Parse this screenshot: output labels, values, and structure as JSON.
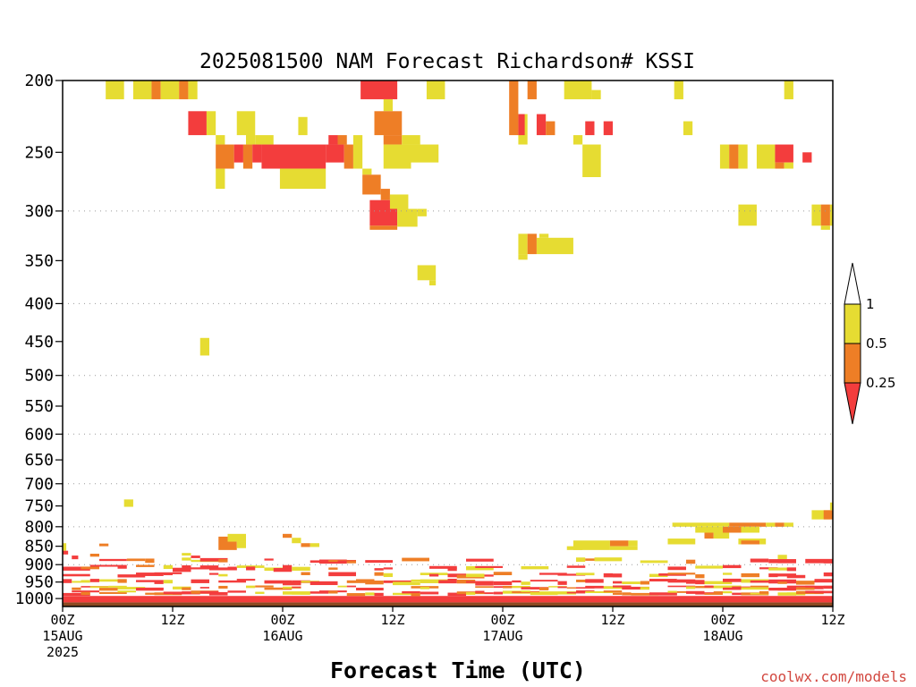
{
  "chart_data": {
    "type": "heatmap",
    "title": "2025081500 NAM Forecast Richardson# KSSI",
    "xlabel": "Forecast Time (UTC)",
    "ylabel": "",
    "credit": "coolwx.com/models",
    "x_unit": "forecast hour",
    "xlim": [
      0,
      84
    ],
    "y_unit": "hPa",
    "y_scale": "log (pressure)",
    "ylim": [
      1025,
      200
    ],
    "grid": "dotted horizontal",
    "y_ticks": [
      200,
      250,
      300,
      350,
      400,
      450,
      500,
      550,
      600,
      650,
      700,
      750,
      800,
      850,
      900,
      950,
      1000
    ],
    "y_grid": [
      300,
      400,
      500,
      600,
      700,
      800,
      900
    ],
    "x_ticks": [
      {
        "hour": 0,
        "lines": [
          "00Z",
          "15AUG",
          "2025"
        ]
      },
      {
        "hour": 12,
        "lines": [
          "12Z"
        ]
      },
      {
        "hour": 24,
        "lines": [
          "00Z",
          "16AUG"
        ]
      },
      {
        "hour": 36,
        "lines": [
          "12Z"
        ]
      },
      {
        "hour": 48,
        "lines": [
          "00Z",
          "17AUG"
        ]
      },
      {
        "hour": 60,
        "lines": [
          "12Z"
        ]
      },
      {
        "hour": 72,
        "lines": [
          "00Z",
          "18AUG"
        ]
      },
      {
        "hour": 84,
        "lines": [
          "12Z"
        ]
      }
    ],
    "legend": {
      "placement": "right",
      "items": [
        {
          "range": "< 0.25",
          "color": "#f33d3d"
        },
        {
          "range": "0.25 - 0.5",
          "color": "#ee7e26"
        },
        {
          "range": "0.5 - 1",
          "color": "#e6dc32"
        }
      ],
      "labels": [
        "1",
        "0.5",
        "0.25"
      ]
    },
    "colors": {
      "red": "#f33d3d",
      "orange": "#ee7e26",
      "yellow": "#e6dc32",
      "ground": "#8b4a22"
    },
    "surface_pressure_hpa": 1012,
    "cells": [
      {
        "t0": 4.7,
        "t1": 6.7,
        "p0": 200,
        "p1": 212,
        "c": "yellow"
      },
      {
        "t0": 7.7,
        "t1": 9.7,
        "p0": 200,
        "p1": 212,
        "c": "yellow"
      },
      {
        "t0": 9.7,
        "t1": 10.7,
        "p0": 200,
        "p1": 212,
        "c": "orange"
      },
      {
        "t0": 10.7,
        "t1": 12.7,
        "p0": 200,
        "p1": 212,
        "c": "yellow"
      },
      {
        "t0": 12.7,
        "t1": 13.7,
        "p0": 200,
        "p1": 212,
        "c": "orange"
      },
      {
        "t0": 13.7,
        "t1": 14.7,
        "p0": 200,
        "p1": 212,
        "c": "yellow"
      },
      {
        "t0": 13.7,
        "t1": 15.7,
        "p0": 220,
        "p1": 237,
        "c": "red"
      },
      {
        "t0": 15.7,
        "t1": 16.7,
        "p0": 220,
        "p1": 237,
        "c": "yellow"
      },
      {
        "t0": 16.7,
        "t1": 17.7,
        "p0": 237,
        "p1": 244,
        "c": "yellow"
      },
      {
        "t0": 19.0,
        "t1": 20.0,
        "p0": 220,
        "p1": 237,
        "c": "yellow"
      },
      {
        "t0": 20.0,
        "t1": 21.0,
        "p0": 220,
        "p1": 244,
        "c": "yellow"
      },
      {
        "t0": 21.0,
        "t1": 23.0,
        "p0": 237,
        "p1": 244,
        "c": "yellow"
      },
      {
        "t0": 16.7,
        "t1": 18.7,
        "p0": 244,
        "p1": 263,
        "c": "orange"
      },
      {
        "t0": 18.7,
        "t1": 19.7,
        "p0": 244,
        "p1": 258,
        "c": "red"
      },
      {
        "t0": 19.7,
        "t1": 20.7,
        "p0": 244,
        "p1": 263,
        "c": "orange"
      },
      {
        "t0": 20.7,
        "t1": 21.7,
        "p0": 244,
        "p1": 258,
        "c": "red"
      },
      {
        "t0": 21.7,
        "t1": 28.7,
        "p0": 244,
        "p1": 263,
        "c": "red"
      },
      {
        "t0": 28.7,
        "t1": 30.7,
        "p0": 244,
        "p1": 258,
        "c": "red"
      },
      {
        "t0": 30.7,
        "t1": 31.7,
        "p0": 244,
        "p1": 263,
        "c": "orange"
      },
      {
        "t0": 30.0,
        "t1": 31.0,
        "p0": 237,
        "p1": 244,
        "c": "orange"
      },
      {
        "t0": 29.0,
        "t1": 30.0,
        "p0": 237,
        "p1": 244,
        "c": "red"
      },
      {
        "t0": 31.7,
        "t1": 32.7,
        "p0": 237,
        "p1": 263,
        "c": "yellow"
      },
      {
        "t0": 16.7,
        "t1": 17.7,
        "p0": 263,
        "p1": 280,
        "c": "yellow"
      },
      {
        "t0": 23.7,
        "t1": 28.7,
        "p0": 263,
        "p1": 280,
        "c": "yellow"
      },
      {
        "t0": 25.7,
        "t1": 26.7,
        "p0": 224,
        "p1": 237,
        "c": "yellow"
      },
      {
        "t0": 32.5,
        "t1": 36.5,
        "p0": 200,
        "p1": 212,
        "c": "red"
      },
      {
        "t0": 35.0,
        "t1": 36.0,
        "p0": 212,
        "p1": 220,
        "c": "yellow"
      },
      {
        "t0": 34.0,
        "t1": 37.0,
        "p0": 220,
        "p1": 237,
        "c": "orange"
      },
      {
        "t0": 35.0,
        "t1": 37.0,
        "p0": 237,
        "p1": 244,
        "c": "orange"
      },
      {
        "t0": 35.0,
        "t1": 38.0,
        "p0": 244,
        "p1": 263,
        "c": "yellow"
      },
      {
        "t0": 38.0,
        "t1": 41.0,
        "p0": 244,
        "p1": 258,
        "c": "yellow"
      },
      {
        "t0": 37.0,
        "t1": 39.0,
        "p0": 237,
        "p1": 244,
        "c": "yellow"
      },
      {
        "t0": 39.7,
        "t1": 41.7,
        "p0": 200,
        "p1": 212,
        "c": "yellow"
      },
      {
        "t0": 32.7,
        "t1": 33.7,
        "p0": 263,
        "p1": 268,
        "c": "yellow"
      },
      {
        "t0": 32.7,
        "t1": 34.7,
        "p0": 268,
        "p1": 285,
        "c": "orange"
      },
      {
        "t0": 34.7,
        "t1": 35.7,
        "p0": 280,
        "p1": 290,
        "c": "orange"
      },
      {
        "t0": 33.5,
        "t1": 36.5,
        "p0": 290,
        "p1": 314,
        "c": "red"
      },
      {
        "t0": 33.5,
        "t1": 36.5,
        "p0": 314,
        "p1": 318,
        "c": "orange"
      },
      {
        "t0": 35.7,
        "t1": 37.7,
        "p0": 285,
        "p1": 298,
        "c": "yellow"
      },
      {
        "t0": 36.5,
        "t1": 38.7,
        "p0": 298,
        "p1": 315,
        "c": "yellow"
      },
      {
        "t0": 38.7,
        "t1": 39.7,
        "p0": 298,
        "p1": 305,
        "c": "yellow"
      },
      {
        "t0": 38.7,
        "t1": 40.7,
        "p0": 355,
        "p1": 372,
        "c": "yellow"
      },
      {
        "t0": 40.0,
        "t1": 40.7,
        "p0": 372,
        "p1": 378,
        "c": "yellow"
      },
      {
        "t0": 48.7,
        "t1": 49.7,
        "p0": 200,
        "p1": 237,
        "c": "orange"
      },
      {
        "t0": 49.7,
        "t1": 50.7,
        "p0": 222,
        "p1": 244,
        "c": "yellow"
      },
      {
        "t0": 49.7,
        "t1": 50.4,
        "p0": 222,
        "p1": 237,
        "c": "red"
      },
      {
        "t0": 50.7,
        "t1": 51.7,
        "p0": 200,
        "p1": 212,
        "c": "orange"
      },
      {
        "t0": 51.7,
        "t1": 52.7,
        "p0": 222,
        "p1": 237,
        "c": "red"
      },
      {
        "t0": 52.7,
        "t1": 53.7,
        "p0": 227,
        "p1": 237,
        "c": "orange"
      },
      {
        "t0": 54.7,
        "t1": 57.7,
        "p0": 200,
        "p1": 212,
        "c": "yellow"
      },
      {
        "t0": 57.7,
        "t1": 58.7,
        "p0": 206,
        "p1": 212,
        "c": "yellow"
      },
      {
        "t0": 57.0,
        "t1": 58.0,
        "p0": 227,
        "p1": 237,
        "c": "red"
      },
      {
        "t0": 59.0,
        "t1": 60.0,
        "p0": 227,
        "p1": 237,
        "c": "red"
      },
      {
        "t0": 56.7,
        "t1": 58.7,
        "p0": 244,
        "p1": 270,
        "c": "yellow"
      },
      {
        "t0": 55.7,
        "t1": 56.7,
        "p0": 237,
        "p1": 244,
        "c": "yellow"
      },
      {
        "t0": 49.7,
        "t1": 50.7,
        "p0": 322,
        "p1": 343,
        "c": "yellow"
      },
      {
        "t0": 50.7,
        "t1": 51.7,
        "p0": 322,
        "p1": 343,
        "c": "orange"
      },
      {
        "t0": 51.7,
        "t1": 55.7,
        "p0": 326,
        "p1": 343,
        "c": "yellow"
      },
      {
        "t0": 52.0,
        "t1": 53.0,
        "p0": 322,
        "p1": 326,
        "c": "yellow"
      },
      {
        "t0": 49.7,
        "t1": 50.7,
        "p0": 343,
        "p1": 349,
        "c": "yellow"
      },
      {
        "t0": 66.7,
        "t1": 67.7,
        "p0": 200,
        "p1": 212,
        "c": "yellow"
      },
      {
        "t0": 67.7,
        "t1": 68.7,
        "p0": 227,
        "p1": 237,
        "c": "yellow"
      },
      {
        "t0": 71.7,
        "t1": 72.7,
        "p0": 244,
        "p1": 263,
        "c": "yellow"
      },
      {
        "t0": 72.7,
        "t1": 73.7,
        "p0": 244,
        "p1": 263,
        "c": "orange"
      },
      {
        "t0": 73.7,
        "t1": 74.7,
        "p0": 244,
        "p1": 263,
        "c": "yellow"
      },
      {
        "t0": 75.7,
        "t1": 77.7,
        "p0": 244,
        "p1": 263,
        "c": "yellow"
      },
      {
        "t0": 77.7,
        "t1": 79.7,
        "p0": 244,
        "p1": 258,
        "c": "red"
      },
      {
        "t0": 77.7,
        "t1": 78.7,
        "p0": 258,
        "p1": 263,
        "c": "orange"
      },
      {
        "t0": 78.7,
        "t1": 79.7,
        "p0": 258,
        "p1": 263,
        "c": "yellow"
      },
      {
        "t0": 80.7,
        "t1": 81.7,
        "p0": 250,
        "p1": 258,
        "c": "red"
      },
      {
        "t0": 78.7,
        "t1": 79.7,
        "p0": 200,
        "p1": 212,
        "c": "yellow"
      },
      {
        "t0": 73.7,
        "t1": 75.7,
        "p0": 294,
        "p1": 314,
        "c": "yellow"
      },
      {
        "t0": 81.7,
        "t1": 82.7,
        "p0": 294,
        "p1": 314,
        "c": "yellow"
      },
      {
        "t0": 82.7,
        "t1": 83.7,
        "p0": 294,
        "p1": 314,
        "c": "orange"
      },
      {
        "t0": 83.7,
        "t1": 84.0,
        "p0": 294,
        "p1": 314,
        "c": "yellow"
      },
      {
        "t0": 82.7,
        "t1": 83.7,
        "p0": 314,
        "p1": 318,
        "c": "yellow"
      },
      {
        "t0": 15.0,
        "t1": 16.0,
        "p0": 445,
        "p1": 470,
        "c": "yellow"
      },
      {
        "t0": 6.7,
        "t1": 7.7,
        "p0": 735,
        "p1": 752,
        "c": "yellow"
      },
      {
        "t0": 66.5,
        "t1": 72.7,
        "p0": 790,
        "p1": 800,
        "c": "yellow"
      },
      {
        "t0": 72.7,
        "t1": 76.7,
        "p0": 790,
        "p1": 800,
        "c": "orange"
      },
      {
        "t0": 76.7,
        "t1": 77.7,
        "p0": 790,
        "p1": 800,
        "c": "yellow"
      },
      {
        "t0": 77.7,
        "t1": 78.7,
        "p0": 790,
        "p1": 800,
        "c": "orange"
      },
      {
        "t0": 78.7,
        "t1": 79.7,
        "p0": 790,
        "p1": 800,
        "c": "yellow"
      },
      {
        "t0": 69.0,
        "t1": 72.0,
        "p0": 800,
        "p1": 815,
        "c": "yellow"
      },
      {
        "t0": 72.0,
        "t1": 74.0,
        "p0": 800,
        "p1": 815,
        "c": "orange"
      },
      {
        "t0": 74.0,
        "t1": 76.0,
        "p0": 800,
        "p1": 815,
        "c": "yellow"
      },
      {
        "t0": 70.0,
        "t1": 71.0,
        "p0": 815,
        "p1": 830,
        "c": "orange"
      },
      {
        "t0": 71.0,
        "t1": 72.7,
        "p0": 815,
        "p1": 830,
        "c": "yellow"
      },
      {
        "t0": 73.7,
        "t1": 76.7,
        "p0": 830,
        "p1": 845,
        "c": "yellow"
      },
      {
        "t0": 66.0,
        "t1": 69.0,
        "p0": 830,
        "p1": 845,
        "c": "yellow"
      },
      {
        "t0": 74.0,
        "t1": 76.0,
        "p0": 835,
        "p1": 845,
        "c": "orange"
      },
      {
        "t0": 81.7,
        "t1": 83.7,
        "p0": 760,
        "p1": 782,
        "c": "yellow"
      },
      {
        "t0": 83.0,
        "t1": 84.0,
        "p0": 760,
        "p1": 782,
        "c": "orange"
      },
      {
        "t0": 83.7,
        "t1": 84.0,
        "p0": 742,
        "p1": 760,
        "c": "yellow"
      },
      {
        "t0": 55.7,
        "t1": 59.7,
        "p0": 835,
        "p1": 860,
        "c": "yellow"
      },
      {
        "t0": 59.7,
        "t1": 61.7,
        "p0": 835,
        "p1": 850,
        "c": "orange"
      },
      {
        "t0": 61.7,
        "t1": 62.7,
        "p0": 835,
        "p1": 850,
        "c": "yellow"
      },
      {
        "t0": 55.0,
        "t1": 56.7,
        "p0": 850,
        "p1": 860,
        "c": "yellow"
      },
      {
        "t0": 59.7,
        "t1": 62.7,
        "p0": 850,
        "p1": 860,
        "c": "yellow"
      },
      {
        "t0": 78.0,
        "t1": 79.0,
        "p0": 873,
        "p1": 885,
        "c": "yellow"
      },
      {
        "t0": 17.0,
        "t1": 18.0,
        "p0": 825,
        "p1": 860,
        "c": "orange"
      },
      {
        "t0": 18.0,
        "t1": 20.0,
        "p0": 818,
        "p1": 838,
        "c": "yellow"
      },
      {
        "t0": 18.0,
        "t1": 19.0,
        "p0": 838,
        "p1": 860,
        "c": "orange"
      },
      {
        "t0": 19.0,
        "t1": 20.0,
        "p0": 838,
        "p1": 855,
        "c": "yellow"
      },
      {
        "t0": 24.0,
        "t1": 25.0,
        "p0": 818,
        "p1": 828,
        "c": "orange"
      },
      {
        "t0": 25.0,
        "t1": 26.0,
        "p0": 828,
        "p1": 842,
        "c": "yellow"
      },
      {
        "t0": 26.0,
        "t1": 27.0,
        "p0": 842,
        "p1": 852,
        "c": "orange"
      },
      {
        "t0": 27.0,
        "t1": 28.0,
        "p0": 842,
        "p1": 852,
        "c": "yellow"
      },
      {
        "t0": 0.0,
        "t1": 0.4,
        "p0": 842,
        "p1": 862,
        "c": "yellow"
      },
      {
        "t0": 0.0,
        "t1": 0.6,
        "p0": 862,
        "p1": 872,
        "c": "red"
      },
      {
        "t0": 1.0,
        "t1": 1.7,
        "p0": 875,
        "p1": 885,
        "c": "red"
      },
      {
        "t0": 4.0,
        "t1": 5.0,
        "p0": 843,
        "p1": 850,
        "c": "orange"
      },
      {
        "t0": 3.0,
        "t1": 4.0,
        "p0": 870,
        "p1": 878,
        "c": "orange"
      },
      {
        "t0": 13.0,
        "t1": 14.0,
        "p0": 868,
        "p1": 875,
        "c": "yellow"
      },
      {
        "t0": 14.0,
        "t1": 15.0,
        "p0": 875,
        "p1": 882,
        "c": "red"
      },
      {
        "t0": 0.0,
        "t1": 84.0,
        "p0": 992,
        "p1": 1012,
        "c": "red"
      }
    ],
    "low_band": {
      "t_step": 1,
      "layers": [
        {
          "p0": 880,
          "p1": 900,
          "density": 0.22
        },
        {
          "p0": 900,
          "p1": 920,
          "density": 0.35
        },
        {
          "p0": 920,
          "p1": 940,
          "density": 0.45
        },
        {
          "p0": 940,
          "p1": 960,
          "density": 0.55
        },
        {
          "p0": 960,
          "p1": 975,
          "density": 0.65
        },
        {
          "p0": 975,
          "p1": 992,
          "density": 0.85
        }
      ],
      "color_mix": {
        "red": 0.5,
        "orange": 0.25,
        "yellow": 0.25
      }
    }
  }
}
